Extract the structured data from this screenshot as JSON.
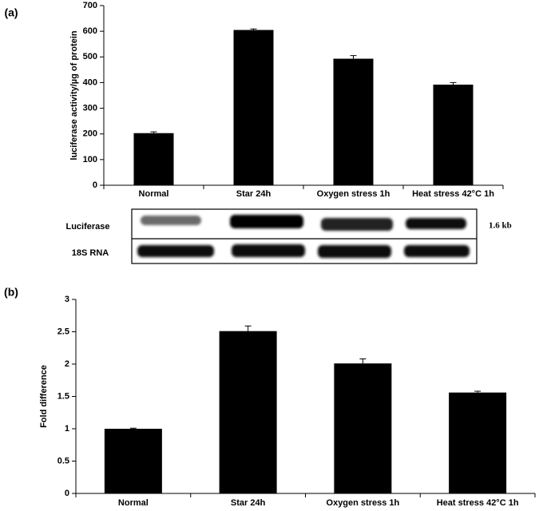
{
  "chart_data": [
    {
      "type": "bar",
      "panel_label": "(a)",
      "y_label": "luciferase activity/µg of protein",
      "categories": [
        "Normal",
        "Star 24h",
        "Oxygen stress 1h",
        "Heat stress 42°C 1h"
      ],
      "values": [
        203,
        605,
        493,
        392
      ],
      "errors": [
        5,
        4,
        12,
        8
      ],
      "color": "#000000",
      "ylim": [
        0,
        700
      ],
      "yticks": [
        0,
        100,
        200,
        300,
        400,
        500,
        600,
        700
      ]
    },
    {
      "type": "bar",
      "panel_label": "(b)",
      "y_label": "Fold difference",
      "categories": [
        "Normal",
        "Star 24h",
        "Oxygen stress 1h",
        "Heat stress 42°C 1h"
      ],
      "values": [
        1.0,
        2.51,
        2.01,
        1.56
      ],
      "errors": [
        0.01,
        0.08,
        0.07,
        0.02
      ],
      "color": "#000000",
      "ylim": [
        0,
        3
      ],
      "yticks": [
        0,
        0.5,
        1,
        1.5,
        2,
        2.5,
        3
      ]
    }
  ],
  "blot": {
    "rows": [
      "Luciferase",
      "18S RNA"
    ],
    "size_label": "1.6 kb"
  }
}
